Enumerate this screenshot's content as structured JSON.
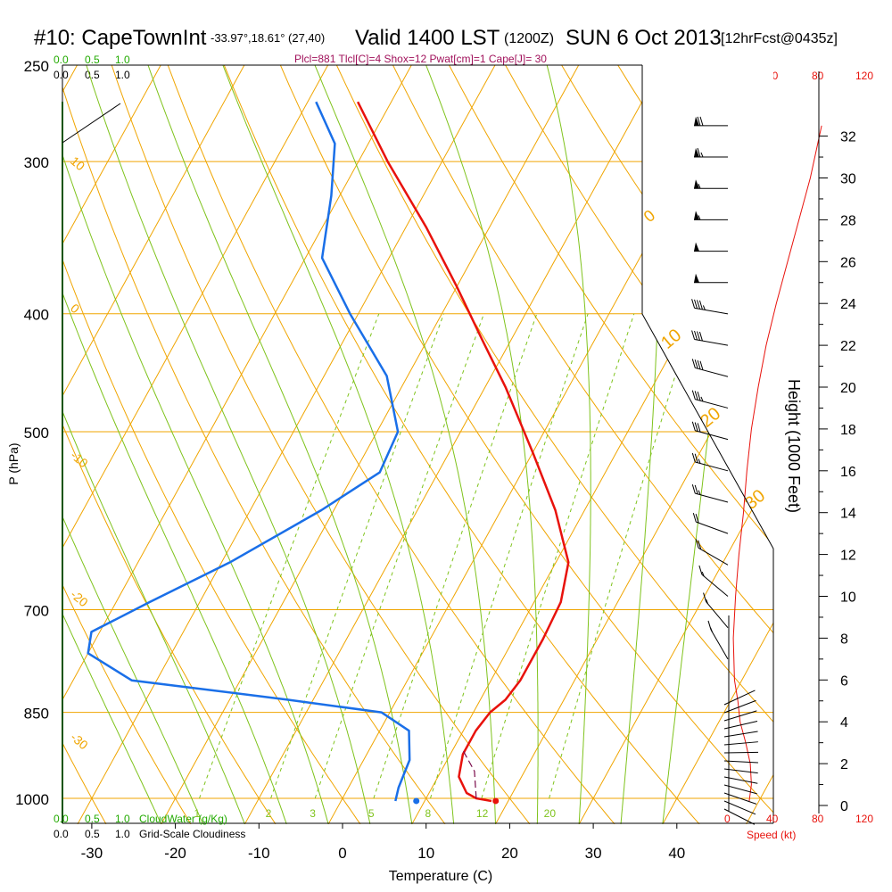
{
  "header": {
    "station": "#10: CapeTownInt",
    "location": "-33.97°,18.61° (27,40)",
    "valid": "Valid 1400 LST",
    "zulu": "(1200Z)",
    "date": "SUN 6 Oct 2013",
    "forecast": "[12hrFcst@0435z]",
    "indices": "Plcl=881 Tlcl[C]=4 Shox=12 Pwat[cm]=1 Cape[J]= 30"
  },
  "colors": {
    "isobar": "#f0a500",
    "dry_adiabat": "#f0a500",
    "moist_adiabat": "#7fc31c",
    "mixing_ratio": "#7fc31c",
    "temperature": "#e8120c",
    "dewpoint": "#1a6fe8",
    "parcel": "#7a0a4a",
    "index_text": "#a0105a",
    "cloudwater": "#22aa00",
    "speed": "#e8120c"
  },
  "chart_data": {
    "type": "skew-t",
    "xlabel": "Temperature (C)",
    "ylabel": "P (hPa)",
    "right_ylabel": "Height (1000 Feet)",
    "x_ticks": [
      "-30",
      "-20",
      "-10",
      "0",
      "10",
      "20",
      "30",
      "40"
    ],
    "pressure_ticks": [
      "250",
      "300",
      "400",
      "500",
      "700",
      "850",
      "1000"
    ],
    "height_ticks": [
      "32",
      "30",
      "28",
      "26",
      "24",
      "22",
      "20",
      "18",
      "16",
      "14",
      "12",
      "10",
      "8",
      "6",
      "4",
      "2",
      "0"
    ],
    "cloudwater_scale_top": [
      "0.0",
      "0.5",
      "1.0"
    ],
    "cloudiness_scale_top": [
      "0.0",
      "0.5",
      "1.0"
    ],
    "cloudwater_scale_bottom": [
      "0.0",
      "0.5",
      "1.0"
    ],
    "cloudiness_scale_bottom": [
      "0.0",
      "0.5",
      "1.0"
    ],
    "cloudwater_label": "CloudWater (g/Kg)",
    "cloudiness_label": "Grid-Scale Cloudiness",
    "speed_label": "Speed (kt)",
    "speed_ticks": [
      "0",
      "40",
      "80",
      "120"
    ],
    "dry_adiabat_labels": [
      "10",
      "0",
      "-10",
      "-20",
      "-30"
    ],
    "upper_isotherm_labels": [
      "0",
      "10",
      "20",
      "30"
    ],
    "mixing_ratio_labels": [
      "1",
      "2",
      "3",
      "5",
      "8",
      "12",
      "20"
    ],
    "temperature_profile": [
      {
        "p": 1005,
        "t": 18.0
      },
      {
        "p": 1000,
        "t": 16.0
      },
      {
        "p": 990,
        "t": 14.5
      },
      {
        "p": 960,
        "t": 12.5
      },
      {
        "p": 920,
        "t": 11.5
      },
      {
        "p": 880,
        "t": 11.5
      },
      {
        "p": 850,
        "t": 12.0
      },
      {
        "p": 830,
        "t": 13.0
      },
      {
        "p": 800,
        "t": 13.5
      },
      {
        "p": 740,
        "t": 13.5
      },
      {
        "p": 690,
        "t": 13.2
      },
      {
        "p": 640,
        "t": 11.5
      },
      {
        "p": 580,
        "t": 6.5
      },
      {
        "p": 520,
        "t": 0.0
      },
      {
        "p": 460,
        "t": -7.5
      },
      {
        "p": 420,
        "t": -13.5
      },
      {
        "p": 380,
        "t": -20.0
      },
      {
        "p": 340,
        "t": -27.5
      },
      {
        "p": 300,
        "t": -36.5
      },
      {
        "p": 268,
        "t": -44.0
      }
    ],
    "dewpoint_profile": [
      {
        "p": 1005,
        "t": 6.5
      },
      {
        "p": 980,
        "t": 6.0
      },
      {
        "p": 930,
        "t": 5.5
      },
      {
        "p": 880,
        "t": 3.5
      },
      {
        "p": 850,
        "t": -1.0
      },
      {
        "p": 830,
        "t": -13.0
      },
      {
        "p": 800,
        "t": -33.0
      },
      {
        "p": 760,
        "t": -40.0
      },
      {
        "p": 730,
        "t": -41.0
      },
      {
        "p": 690,
        "t": -36.0
      },
      {
        "p": 640,
        "t": -29.0
      },
      {
        "p": 580,
        "t": -21.5
      },
      {
        "p": 540,
        "t": -17.0
      },
      {
        "p": 500,
        "t": -17.5
      },
      {
        "p": 450,
        "t": -22.5
      },
      {
        "p": 400,
        "t": -31.0
      },
      {
        "p": 360,
        "t": -38.0
      },
      {
        "p": 320,
        "t": -41.0
      },
      {
        "p": 290,
        "t": -44.0
      },
      {
        "p": 268,
        "t": -49.0
      }
    ],
    "parcel_path": [
      {
        "p": 1000,
        "t": 16.0
      },
      {
        "p": 950,
        "t": 14.0
      },
      {
        "p": 910,
        "t": 11.0
      }
    ],
    "surface_temperature": {
      "p": 1005,
      "t": 18.5
    },
    "surface_dewpoint": {
      "p": 1005,
      "t": 9.0
    },
    "wind_barbs": [
      {
        "height_kft": 32.5,
        "dir": 270,
        "kt": 70
      },
      {
        "height_kft": 31,
        "dir": 270,
        "kt": 65
      },
      {
        "height_kft": 29.5,
        "dir": 270,
        "kt": 55
      },
      {
        "height_kft": 28,
        "dir": 270,
        "kt": 55
      },
      {
        "height_kft": 26.5,
        "dir": 270,
        "kt": 50
      },
      {
        "height_kft": 25,
        "dir": 270,
        "kt": 50
      },
      {
        "height_kft": 23.5,
        "dir": 280,
        "kt": 45
      },
      {
        "height_kft": 22,
        "dir": 280,
        "kt": 40
      },
      {
        "height_kft": 20.5,
        "dir": 285,
        "kt": 40
      },
      {
        "height_kft": 19,
        "dir": 285,
        "kt": 35
      },
      {
        "height_kft": 17.5,
        "dir": 285,
        "kt": 30
      },
      {
        "height_kft": 16,
        "dir": 285,
        "kt": 25
      },
      {
        "height_kft": 14.5,
        "dir": 285,
        "kt": 25
      },
      {
        "height_kft": 13,
        "dir": 290,
        "kt": 20
      },
      {
        "height_kft": 11.5,
        "dir": 300,
        "kt": 20
      },
      {
        "height_kft": 10,
        "dir": 310,
        "kt": 15
      },
      {
        "height_kft": 8.5,
        "dir": 320,
        "kt": 15
      },
      {
        "height_kft": 7,
        "dir": 330,
        "kt": 15
      }
    ],
    "wind_speed_profile": [
      {
        "height_kft": 0.2,
        "kt": 18
      },
      {
        "height_kft": 1,
        "kt": 20
      },
      {
        "height_kft": 2,
        "kt": 19
      },
      {
        "height_kft": 3,
        "kt": 15
      },
      {
        "height_kft": 4,
        "kt": 10
      },
      {
        "height_kft": 5,
        "kt": 8
      },
      {
        "height_kft": 6,
        "kt": 5
      },
      {
        "height_kft": 8,
        "kt": 4
      },
      {
        "height_kft": 10,
        "kt": 6
      },
      {
        "height_kft": 12,
        "kt": 9
      },
      {
        "height_kft": 14,
        "kt": 13
      },
      {
        "height_kft": 16,
        "kt": 16
      },
      {
        "height_kft": 18,
        "kt": 20
      },
      {
        "height_kft": 20,
        "kt": 26
      },
      {
        "height_kft": 22,
        "kt": 33
      },
      {
        "height_kft": 24,
        "kt": 42
      },
      {
        "height_kft": 26,
        "kt": 52
      },
      {
        "height_kft": 28,
        "kt": 62
      },
      {
        "height_kft": 30,
        "kt": 72
      },
      {
        "height_kft": 32.5,
        "kt": 82
      }
    ]
  }
}
